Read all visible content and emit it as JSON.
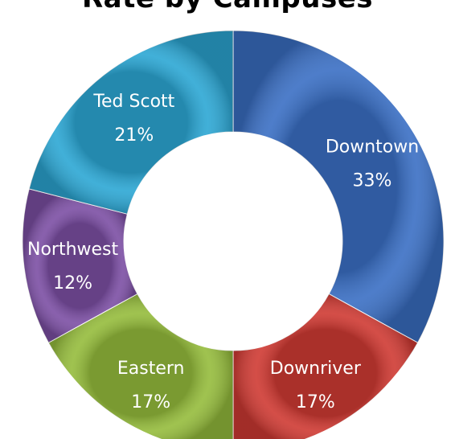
{
  "chart_data": {
    "type": "pie",
    "title": "Rate by Campuses",
    "donut": true,
    "legend": "none",
    "slices": [
      {
        "label": "Downtown",
        "value": 33,
        "display": "33%",
        "color": "#3a6fc4"
      },
      {
        "label": "Downriver",
        "value": 17,
        "display": "17%",
        "color": "#cf3a33"
      },
      {
        "label": "Eastern",
        "value": 17,
        "display": "17%",
        "color": "#95bc3c"
      },
      {
        "label": "Northwest",
        "value": 12,
        "display": "12%",
        "color": "#7c4fa4"
      },
      {
        "label": "Ted Scott",
        "value": 21,
        "display": "21%",
        "color": "#2ca7d4"
      }
    ]
  }
}
